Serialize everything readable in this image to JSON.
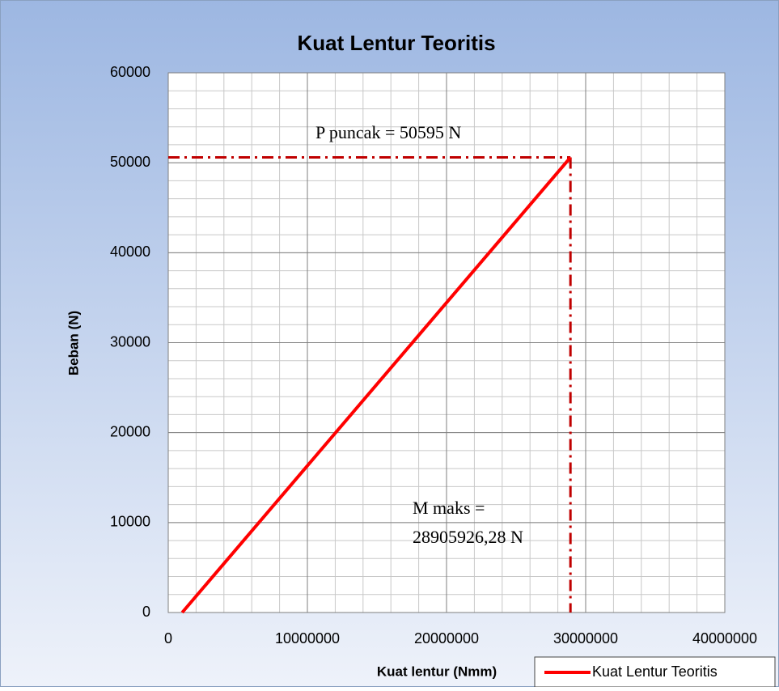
{
  "chart_data": {
    "type": "line",
    "title": "Kuat Lentur Teoritis",
    "x_label": "Kuat lentur (Nmm)",
    "y_label": "Beban  (N)",
    "x": [
      1000000,
      28905926.28
    ],
    "series": [
      {
        "name": "Kuat Lentur Teoritis",
        "color": "#ff0000",
        "values": [
          0,
          50595
        ]
      }
    ],
    "xlim": [
      0,
      40000000
    ],
    "xticks": [
      0,
      10000000,
      20000000,
      30000000,
      40000000
    ],
    "ylim": [
      0,
      60000
    ],
    "yticks": [
      0,
      10000,
      20000,
      30000,
      40000,
      50000,
      60000
    ],
    "grid": true,
    "x_minor_step": 2000000,
    "y_minor_step": 2000,
    "peak_lines": true,
    "peak_line_color": "#c00000",
    "annotations": [
      "P puncak =  50595 N",
      "M maks =",
      "28905926,28 N"
    ],
    "legend": "bottom-right"
  }
}
